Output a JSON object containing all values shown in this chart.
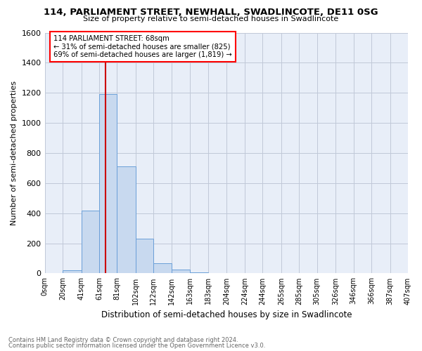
{
  "title": "114, PARLIAMENT STREET, NEWHALL, SWADLINCOTE, DE11 0SG",
  "subtitle": "Size of property relative to semi-detached houses in Swadlincote",
  "xlabel": "Distribution of semi-detached houses by size in Swadlincote",
  "ylabel": "Number of semi-detached properties",
  "footnote1": "Contains HM Land Registry data © Crown copyright and database right 2024.",
  "footnote2": "Contains public sector information licensed under the Open Government Licence v3.0.",
  "annotation_line1": "114 PARLIAMENT STREET: 68sqm",
  "annotation_line2": "← 31% of semi-detached houses are smaller (825)",
  "annotation_line3": "69% of semi-detached houses are larger (1,819) →",
  "property_size": 68,
  "bin_edges": [
    0,
    20,
    41,
    61,
    81,
    102,
    122,
    142,
    163,
    183,
    204,
    224,
    244,
    265,
    285,
    305,
    326,
    346,
    366,
    387,
    407
  ],
  "bin_counts": [
    0,
    20,
    415,
    1190,
    710,
    230,
    65,
    25,
    5,
    2,
    2,
    1,
    1,
    0,
    0,
    0,
    0,
    0,
    0,
    0
  ],
  "bar_color": "#c8d9ef",
  "bar_edge_color": "#6a9fd8",
  "line_color": "#cc0000",
  "ylim": [
    0,
    1600
  ],
  "yticks": [
    0,
    200,
    400,
    600,
    800,
    1000,
    1200,
    1400,
    1600
  ],
  "tick_labels": [
    "0sqm",
    "20sqm",
    "41sqm",
    "61sqm",
    "81sqm",
    "102sqm",
    "122sqm",
    "142sqm",
    "163sqm",
    "183sqm",
    "204sqm",
    "224sqm",
    "244sqm",
    "265sqm",
    "285sqm",
    "305sqm",
    "326sqm",
    "346sqm",
    "366sqm",
    "387sqm",
    "407sqm"
  ],
  "background_color": "#ffffff",
  "plot_bg_color": "#e8eef8",
  "grid_color": "#c0c8d8"
}
